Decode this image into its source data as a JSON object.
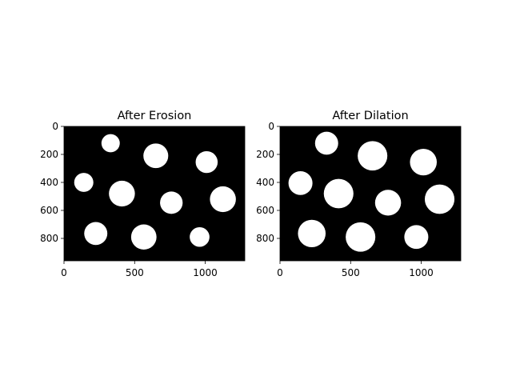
{
  "chart_data": [
    {
      "type": "image",
      "title": "After Erosion",
      "xlim": [
        0,
        1280
      ],
      "ylim": [
        960,
        0
      ],
      "xticks": [
        0,
        500,
        1000
      ],
      "yticks": [
        0,
        200,
        400,
        600,
        800
      ],
      "background_color": "#000000",
      "foreground_color": "#ffffff",
      "blobs": [
        {
          "x": 330,
          "y": 120,
          "r": 65
        },
        {
          "x": 650,
          "y": 210,
          "r": 88
        },
        {
          "x": 1010,
          "y": 255,
          "r": 78
        },
        {
          "x": 140,
          "y": 400,
          "r": 68
        },
        {
          "x": 410,
          "y": 480,
          "r": 92
        },
        {
          "x": 760,
          "y": 545,
          "r": 80
        },
        {
          "x": 1125,
          "y": 520,
          "r": 92
        },
        {
          "x": 225,
          "y": 765,
          "r": 82
        },
        {
          "x": 565,
          "y": 790,
          "r": 90
        },
        {
          "x": 960,
          "y": 790,
          "r": 70
        }
      ]
    },
    {
      "type": "image",
      "title": "After Dilation",
      "xlim": [
        0,
        1280
      ],
      "ylim": [
        960,
        0
      ],
      "xticks": [
        0,
        500,
        1000
      ],
      "yticks": [
        0,
        200,
        400,
        600,
        800
      ],
      "background_color": "#000000",
      "foreground_color": "#ffffff",
      "blobs": [
        {
          "x": 330,
          "y": 120,
          "r": 82
        },
        {
          "x": 655,
          "y": 210,
          "r": 105
        },
        {
          "x": 1015,
          "y": 255,
          "r": 95
        },
        {
          "x": 145,
          "y": 405,
          "r": 85
        },
        {
          "x": 415,
          "y": 480,
          "r": 105
        },
        {
          "x": 765,
          "y": 545,
          "r": 92
        },
        {
          "x": 1130,
          "y": 520,
          "r": 105
        },
        {
          "x": 225,
          "y": 765,
          "r": 98
        },
        {
          "x": 570,
          "y": 790,
          "r": 105
        },
        {
          "x": 965,
          "y": 790,
          "r": 85
        }
      ]
    }
  ]
}
